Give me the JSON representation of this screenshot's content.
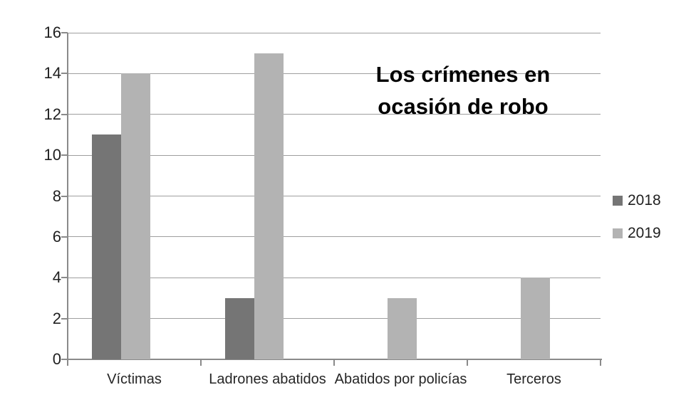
{
  "title": {
    "line1": "Los crímenes en",
    "line2": "ocasión de robo"
  },
  "chart_data": {
    "type": "bar",
    "title": "Los crímenes en ocasión de robo",
    "categories": [
      "Víctimas",
      "Ladrones abatidos",
      "Abatidos por policías",
      "Terceros"
    ],
    "series": [
      {
        "name": "2018",
        "color": "#757575",
        "values": [
          11,
          3,
          0,
          0
        ]
      },
      {
        "name": "2019",
        "color": "#b3b3b3",
        "values": [
          14,
          15,
          3,
          4
        ]
      }
    ],
    "xlabel": "",
    "ylabel": "",
    "ylim": [
      0,
      16
    ],
    "ytick_step": 2,
    "yticks": [
      0,
      2,
      4,
      6,
      8,
      10,
      12,
      14,
      16
    ],
    "grid": true,
    "legend_position": "right"
  },
  "colors": {
    "axis": "#8a8a8a",
    "gridline": "#9e9e9e",
    "text": "#262626",
    "background": "#ffffff"
  }
}
